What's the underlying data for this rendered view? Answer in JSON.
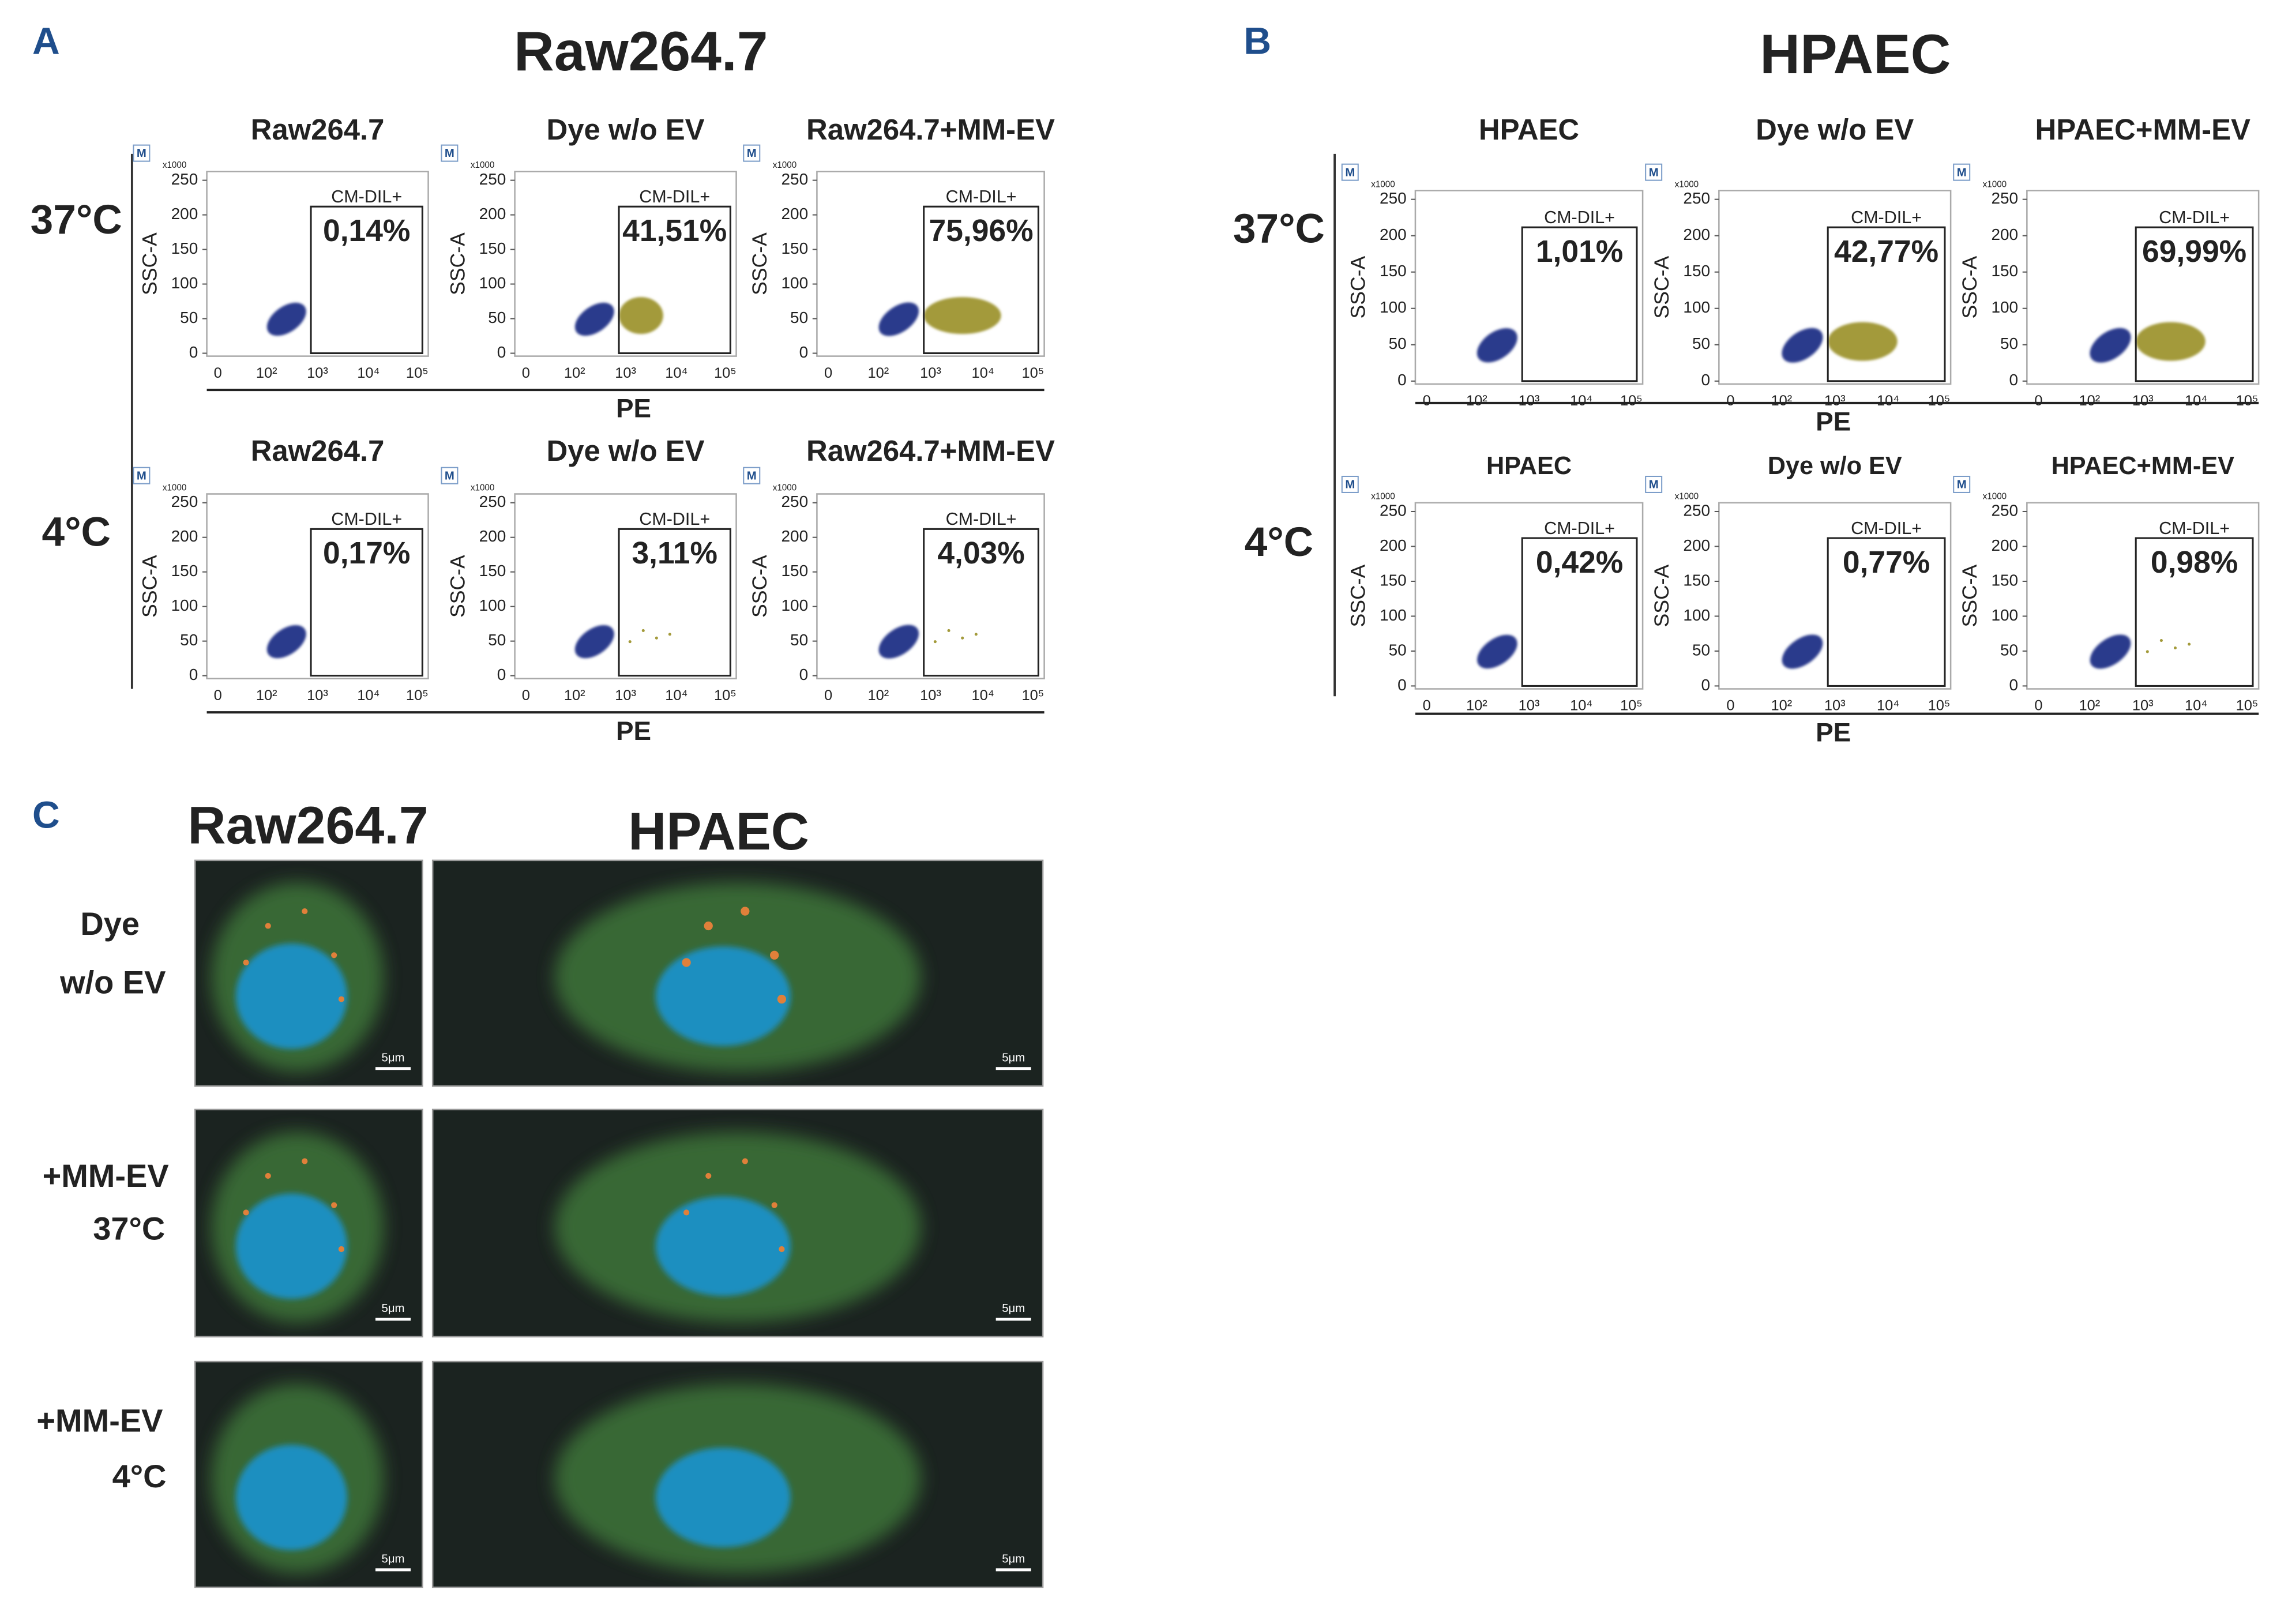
{
  "panel_a": {
    "label": "A",
    "title": "Raw264.7",
    "marker": "M",
    "y_unit": "x1000",
    "y_axis_label": "SSC-A",
    "x_axis_label": "PE",
    "yticks": [
      0,
      50,
      100,
      150,
      200,
      250
    ],
    "xticks": [
      "0",
      "10²",
      "10³",
      "10⁴",
      "10⁵"
    ],
    "rows": [
      {
        "condition": "37°C",
        "plots": [
          {
            "title": "Raw264.7",
            "gate": "CM-DIL+",
            "percent": "0,14%"
          },
          {
            "title": "Dye w/o EV",
            "gate": "CM-DIL+",
            "percent": "41,51%"
          },
          {
            "title": "Raw264.7+MM-EV",
            "gate": "CM-DIL+",
            "percent": "75,96%"
          }
        ]
      },
      {
        "condition": "4°C",
        "plots": [
          {
            "title": "Raw264.7",
            "gate": "CM-DIL+",
            "percent": "0,17%"
          },
          {
            "title": "Dye w/o EV",
            "gate": "CM-DIL+",
            "percent": "3,11%"
          },
          {
            "title": "Raw264.7+MM-EV",
            "gate": "CM-DIL+",
            "percent": "4,03%"
          }
        ]
      }
    ]
  },
  "panel_b": {
    "label": "B",
    "title": "HPAEC",
    "marker": "M",
    "y_unit": "x1000",
    "y_axis_label": "SSC-A",
    "x_axis_label": "PE",
    "yticks": [
      0,
      50,
      100,
      150,
      200,
      250
    ],
    "xticks": [
      "0",
      "10²",
      "10³",
      "10⁴",
      "10⁵"
    ],
    "rows": [
      {
        "condition": "37°C",
        "plots": [
          {
            "title": "HPAEC",
            "gate": "CM-DIL+",
            "percent": "1,01%"
          },
          {
            "title": "Dye w/o EV",
            "gate": "CM-DIL+",
            "percent": "42,77%"
          },
          {
            "title": "HPAEC+MM-EV",
            "gate": "CM-DIL+",
            "percent": "69,99%"
          }
        ]
      },
      {
        "condition": "4°C",
        "plots": [
          {
            "title": "HPAEC",
            "gate": "CM-DIL+",
            "percent": "0,42%"
          },
          {
            "title": "Dye w/o EV",
            "gate": "CM-DIL+",
            "percent": "0,77%"
          },
          {
            "title": "HPAEC+MM-EV",
            "gate": "CM-DIL+",
            "percent": "0,98%"
          }
        ]
      }
    ]
  },
  "panel_c": {
    "label": "C",
    "columns": [
      "Raw264.7",
      "HPAEC"
    ],
    "scale_bar": "5μm",
    "rows": [
      {
        "label": [
          "Dye",
          "w/o EV"
        ]
      },
      {
        "label": [
          "+MM-EV",
          "37°C"
        ]
      },
      {
        "label": [
          "+MM-EV",
          "4°C"
        ]
      }
    ]
  }
}
